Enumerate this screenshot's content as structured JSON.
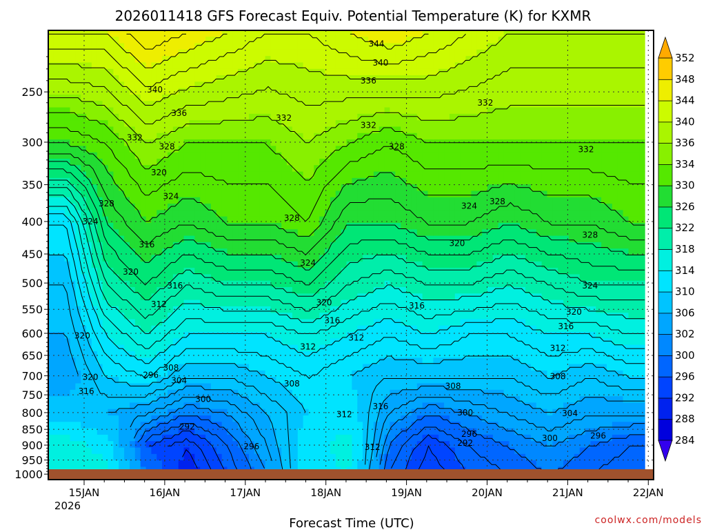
{
  "chart_data": {
    "type": "heatmap",
    "title": "2026011418 GFS Forecast Equiv. Potential Temperature (K) for KXMR",
    "xlabel": "Forecast Time (UTC)",
    "ylabel": "",
    "credit": "coolwx.com/models",
    "x_ticks": [
      "15JAN",
      "16JAN",
      "17JAN",
      "18JAN",
      "19JAN",
      "20JAN",
      "21JAN",
      "22JAN"
    ],
    "x_year_label": "2026",
    "y_ticks": [
      250,
      300,
      350,
      400,
      450,
      500,
      550,
      600,
      650,
      700,
      750,
      800,
      850,
      900,
      950,
      1000
    ],
    "y_range_hpa": [
      200,
      1020
    ],
    "colorbar_levels": [
      284,
      288,
      292,
      296,
      300,
      302,
      306,
      310,
      314,
      318,
      322,
      326,
      330,
      334,
      336,
      340,
      344,
      348,
      352
    ],
    "colorbar_colors": [
      "#0000dd",
      "#0022ee",
      "#0044ff",
      "#0066ff",
      "#0088ff",
      "#00a6ff",
      "#00c4ff",
      "#00e4ff",
      "#00f0e0",
      "#00eeaa",
      "#00e676",
      "#22dd33",
      "#55e800",
      "#88f000",
      "#aaf500",
      "#ccfb00",
      "#eeee00",
      "#ffcc00",
      "#ffaa00"
    ],
    "time_axis": [
      "15JAN",
      "15.5",
      "16JAN",
      "16.5",
      "17JAN",
      "17.5",
      "18JAN",
      "18.5",
      "19JAN",
      "19.5",
      "20JAN",
      "20.5",
      "21JAN",
      "21.5",
      "22JAN"
    ],
    "series_pressure": [
      1000,
      900,
      800,
      700,
      600,
      500,
      400,
      300,
      200
    ],
    "values": [
      [
        318,
        316,
        308,
        304,
        306,
        308,
        312,
        330,
        344
      ],
      [
        316,
        312,
        306,
        310,
        314,
        320,
        326,
        332,
        344
      ],
      [
        300,
        296,
        304,
        312,
        318,
        324,
        330,
        336,
        348
      ],
      [
        290,
        292,
        300,
        308,
        314,
        320,
        328,
        334,
        346
      ],
      [
        296,
        298,
        302,
        308,
        314,
        322,
        330,
        334,
        344
      ],
      [
        302,
        304,
        306,
        310,
        314,
        322,
        330,
        334,
        342
      ],
      [
        312,
        312,
        310,
        312,
        316,
        324,
        332,
        336,
        342
      ],
      [
        314,
        316,
        312,
        310,
        314,
        320,
        326,
        334,
        344
      ],
      [
        298,
        300,
        304,
        308,
        312,
        318,
        326,
        332,
        346
      ],
      [
        292,
        294,
        300,
        308,
        314,
        320,
        328,
        334,
        344
      ],
      [
        296,
        298,
        302,
        308,
        312,
        320,
        328,
        334,
        342
      ],
      [
        298,
        300,
        304,
        308,
        312,
        318,
        326,
        334,
        340
      ],
      [
        300,
        302,
        306,
        310,
        314,
        320,
        328,
        334,
        340
      ],
      [
        298,
        300,
        304,
        308,
        314,
        322,
        328,
        334,
        340
      ],
      [
        296,
        298,
        304,
        310,
        316,
        322,
        330,
        334,
        340
      ]
    ],
    "contour_labels": [
      {
        "text": "344",
        "t": 3.85,
        "p": 210
      },
      {
        "text": "340",
        "t": 3.9,
        "p": 225
      },
      {
        "text": "336",
        "t": 3.75,
        "p": 240
      },
      {
        "text": "340",
        "t": 1.1,
        "p": 248
      },
      {
        "text": "336",
        "t": 1.4,
        "p": 270
      },
      {
        "text": "332",
        "t": 2.7,
        "p": 275
      },
      {
        "text": "332",
        "t": 3.75,
        "p": 282
      },
      {
        "text": "332",
        "t": 5.2,
        "p": 260
      },
      {
        "text": "332",
        "t": 0.85,
        "p": 295
      },
      {
        "text": "328",
        "t": 1.25,
        "p": 305
      },
      {
        "text": "328",
        "t": 4.1,
        "p": 305
      },
      {
        "text": "332",
        "t": 6.45,
        "p": 308
      },
      {
        "text": "320",
        "t": 1.15,
        "p": 335
      },
      {
        "text": "324",
        "t": 1.3,
        "p": 365
      },
      {
        "text": "328",
        "t": 0.5,
        "p": 375
      },
      {
        "text": "324",
        "t": 5.0,
        "p": 378
      },
      {
        "text": "328",
        "t": 5.35,
        "p": 372
      },
      {
        "text": "328",
        "t": 2.8,
        "p": 395
      },
      {
        "text": "324",
        "t": 0.3,
        "p": 400
      },
      {
        "text": "328",
        "t": 6.5,
        "p": 420
      },
      {
        "text": "320",
        "t": 4.85,
        "p": 433
      },
      {
        "text": "316",
        "t": 1.0,
        "p": 435
      },
      {
        "text": "324",
        "t": 3.0,
        "p": 465
      },
      {
        "text": "320",
        "t": 0.8,
        "p": 480
      },
      {
        "text": "316",
        "t": 1.35,
        "p": 505
      },
      {
        "text": "324",
        "t": 6.5,
        "p": 505
      },
      {
        "text": "320",
        "t": 3.2,
        "p": 537
      },
      {
        "text": "312",
        "t": 1.15,
        "p": 540
      },
      {
        "text": "316",
        "t": 4.35,
        "p": 543
      },
      {
        "text": "320",
        "t": 6.3,
        "p": 555
      },
      {
        "text": "316",
        "t": 3.3,
        "p": 573
      },
      {
        "text": "316",
        "t": 6.2,
        "p": 585
      },
      {
        "text": "320",
        "t": 0.2,
        "p": 605
      },
      {
        "text": "312",
        "t": 3.6,
        "p": 610
      },
      {
        "text": "312",
        "t": 3.0,
        "p": 630
      },
      {
        "text": "312",
        "t": 6.1,
        "p": 633
      },
      {
        "text": "308",
        "t": 1.3,
        "p": 680
      },
      {
        "text": "296",
        "t": 1.05,
        "p": 698
      },
      {
        "text": "320",
        "t": 0.3,
        "p": 703
      },
      {
        "text": "304",
        "t": 1.4,
        "p": 712
      },
      {
        "text": "308",
        "t": 2.8,
        "p": 720
      },
      {
        "text": "308",
        "t": 4.8,
        "p": 727
      },
      {
        "text": "308",
        "t": 6.1,
        "p": 702
      },
      {
        "text": "316",
        "t": 0.25,
        "p": 740
      },
      {
        "text": "300",
        "t": 1.7,
        "p": 762
      },
      {
        "text": "316",
        "t": 3.9,
        "p": 782
      },
      {
        "text": "300",
        "t": 4.95,
        "p": 800
      },
      {
        "text": "312",
        "t": 3.45,
        "p": 805
      },
      {
        "text": "304",
        "t": 6.25,
        "p": 802
      },
      {
        "text": "292",
        "t": 1.5,
        "p": 842
      },
      {
        "text": "296",
        "t": 5.0,
        "p": 865
      },
      {
        "text": "300",
        "t": 6.0,
        "p": 878
      },
      {
        "text": "296",
        "t": 6.6,
        "p": 870
      },
      {
        "text": "292",
        "t": 4.95,
        "p": 893
      },
      {
        "text": "296",
        "t": 2.3,
        "p": 905
      },
      {
        "text": "312",
        "t": 3.8,
        "p": 907
      }
    ]
  }
}
